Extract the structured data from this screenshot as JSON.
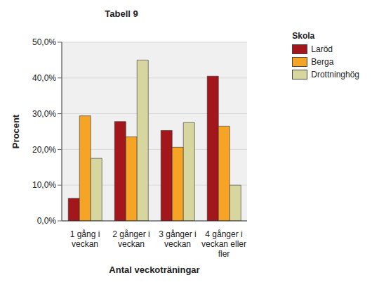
{
  "chart_data": {
    "type": "bar",
    "title": "Tabell 9",
    "x_label": "Antal veckoträningar",
    "y_label": "Procent",
    "legend_title": "Skola",
    "categories": [
      "1 gång i veckan",
      "2 gånger i veckan",
      "3 gånger i veckan",
      "4 gånger i veckan eller fler"
    ],
    "series": [
      {
        "name": "Laröd",
        "color": "#a3161c",
        "values": [
          6.3,
          27.8,
          25.3,
          40.5
        ]
      },
      {
        "name": "Berga",
        "color": "#f5a425",
        "values": [
          29.4,
          23.5,
          20.6,
          26.5
        ]
      },
      {
        "name": "Drottninghög",
        "color": "#d6d69e",
        "values": [
          17.5,
          45.0,
          27.5,
          10.0
        ]
      }
    ],
    "ylim": [
      0,
      50
    ],
    "yticks": [
      {
        "value": 0,
        "label": "0,0%"
      },
      {
        "value": 10,
        "label": "10,0%"
      },
      {
        "value": 20,
        "label": "20,0%"
      },
      {
        "value": 30,
        "label": "30,0%"
      },
      {
        "value": 40,
        "label": "40,0%"
      },
      {
        "value": 50,
        "label": "50,0%"
      }
    ],
    "grid": true,
    "legend": "right"
  }
}
